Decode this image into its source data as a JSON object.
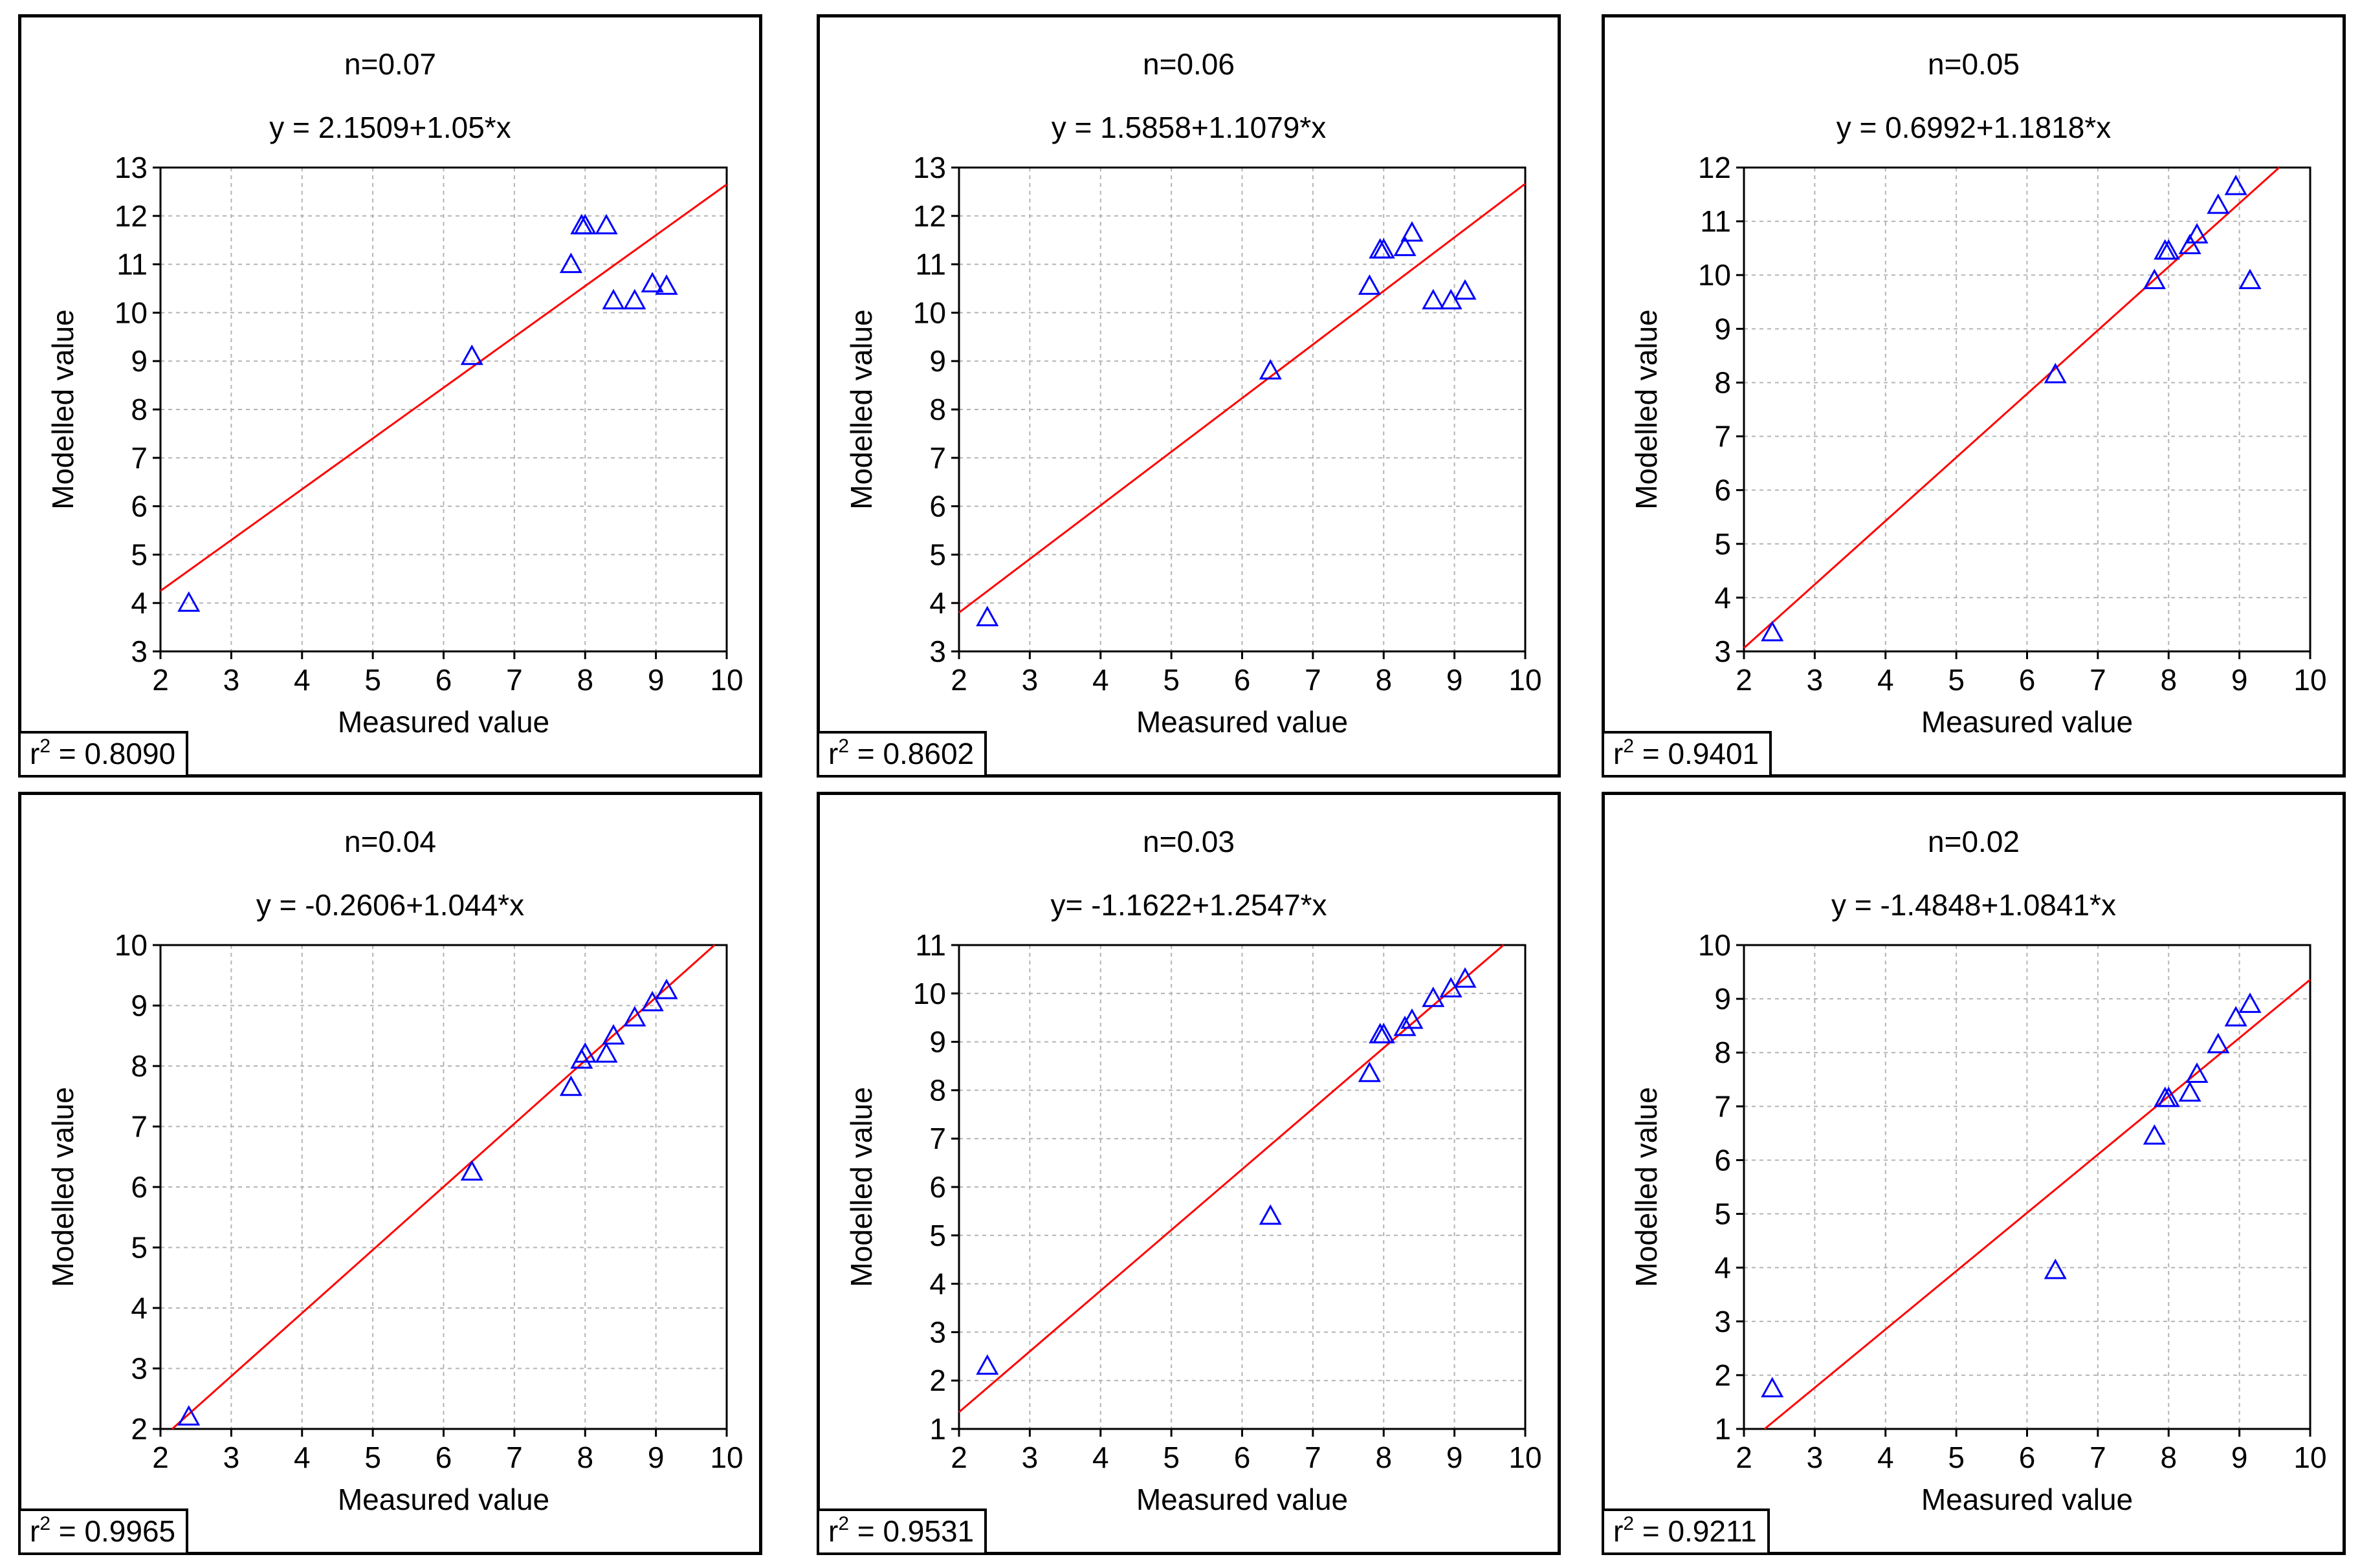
{
  "figure": {
    "measured_x": [
      2.4,
      6.4,
      7.8,
      7.95,
      8.0,
      8.3,
      8.4,
      8.7,
      8.95,
      9.15
    ],
    "colors": {
      "frame": "#000000",
      "grid": "#b4b4b4",
      "fit_line": "#ff0000",
      "marker": "#0000ff"
    }
  },
  "chart_data": [
    {
      "type": "scatter",
      "title": "n=0.07",
      "equation": "y = 2.1509+1.05*x",
      "xlabel": "Measured value",
      "ylabel": "Modelled value",
      "xlim": [
        2,
        10
      ],
      "ylim": [
        3,
        13
      ],
      "xticks": [
        "2",
        "3",
        "4",
        "5",
        "6",
        "7",
        "8",
        "9",
        "10"
      ],
      "yticks": [
        "3",
        "4",
        "5",
        "6",
        "7",
        "8",
        "9",
        "10",
        "11",
        "12",
        "13"
      ],
      "r2_label": "r",
      "r2_sup": "2",
      "r2_value": " = 0.8090",
      "fit": {
        "intercept": 2.1509,
        "slope": 1.05
      },
      "y": [
        4.0,
        9.1,
        11.0,
        11.8,
        11.8,
        11.8,
        10.25,
        10.25,
        10.6,
        10.55
      ]
    },
    {
      "type": "scatter",
      "title": "n=0.06",
      "equation": "y = 1.5858+1.1079*x",
      "xlabel": "Measured value",
      "ylabel": "Modelled value",
      "xlim": [
        2,
        10
      ],
      "ylim": [
        3,
        13
      ],
      "xticks": [
        "2",
        "3",
        "4",
        "5",
        "6",
        "7",
        "8",
        "9",
        "10"
      ],
      "yticks": [
        "3",
        "4",
        "5",
        "6",
        "7",
        "8",
        "9",
        "10",
        "11",
        "12",
        "13"
      ],
      "r2_label": "r",
      "r2_sup": "2",
      "r2_value": " = 0.8602",
      "fit": {
        "intercept": 1.5858,
        "slope": 1.1079
      },
      "y": [
        3.7,
        8.8,
        10.55,
        11.3,
        11.3,
        11.35,
        11.65,
        10.25,
        10.25,
        10.45
      ]
    },
    {
      "type": "scatter",
      "title": "n=0.05",
      "equation": "y = 0.6992+1.1818*x",
      "xlabel": "Measured value",
      "ylabel": "Modelled value",
      "xlim": [
        2,
        10
      ],
      "ylim": [
        3,
        12
      ],
      "xticks": [
        "2",
        "3",
        "4",
        "5",
        "6",
        "7",
        "8",
        "9",
        "10"
      ],
      "yticks": [
        "3",
        "4",
        "5",
        "6",
        "7",
        "8",
        "9",
        "10",
        "11",
        "12"
      ],
      "r2_label": "r",
      "r2_sup": "2",
      "r2_value": " = 0.9401",
      "fit": {
        "intercept": 0.6992,
        "slope": 1.1818
      },
      "y": [
        3.35,
        8.15,
        9.9,
        10.45,
        10.45,
        10.55,
        10.75,
        11.3,
        11.65,
        9.9
      ]
    },
    {
      "type": "scatter",
      "title": "n=0.04",
      "equation": "y = -0.2606+1.044*x",
      "xlabel": "Measured value",
      "ylabel": "Modelled value",
      "xlim": [
        2,
        10
      ],
      "ylim": [
        2,
        10
      ],
      "xticks": [
        "2",
        "3",
        "4",
        "5",
        "6",
        "7",
        "8",
        "9",
        "10"
      ],
      "yticks": [
        "2",
        "3",
        "4",
        "5",
        "6",
        "7",
        "8",
        "9",
        "10"
      ],
      "r2_label": "r",
      "r2_sup": "2",
      "r2_value": " = 0.9965",
      "fit": {
        "intercept": -0.2606,
        "slope": 1.044
      },
      "y": [
        2.2,
        6.25,
        7.65,
        8.1,
        8.2,
        8.2,
        8.5,
        8.8,
        9.05,
        9.25
      ]
    },
    {
      "type": "scatter",
      "title": "n=0.03",
      "equation": "y= -1.1622+1.2547*x",
      "xlabel": "Measured value",
      "ylabel": "Modelled value",
      "xlim": [
        2,
        10
      ],
      "ylim": [
        1,
        11
      ],
      "xticks": [
        "2",
        "3",
        "4",
        "5",
        "6",
        "7",
        "8",
        "9",
        "10"
      ],
      "yticks": [
        "1",
        "2",
        "3",
        "4",
        "5",
        "6",
        "7",
        "8",
        "9",
        "10",
        "11"
      ],
      "r2_label": "r",
      "r2_sup": "2",
      "r2_value": " = 0.9531",
      "fit": {
        "intercept": -1.1622,
        "slope": 1.2547
      },
      "y": [
        2.3,
        5.4,
        8.35,
        9.15,
        9.15,
        9.3,
        9.45,
        9.9,
        10.1,
        10.3
      ]
    },
    {
      "type": "scatter",
      "title": "n=0.02",
      "equation": "y = -1.4848+1.0841*x",
      "xlabel": "Measured value",
      "ylabel": "Modelled value",
      "xlim": [
        2,
        10
      ],
      "ylim": [
        1,
        10
      ],
      "xticks": [
        "2",
        "3",
        "4",
        "5",
        "6",
        "7",
        "8",
        "9",
        "10"
      ],
      "yticks": [
        "1",
        "2",
        "3",
        "4",
        "5",
        "6",
        "7",
        "8",
        "9",
        "10"
      ],
      "r2_label": "r",
      "r2_sup": "2",
      "r2_value": " = 0.9211",
      "fit": {
        "intercept": -1.4848,
        "slope": 1.0841
      },
      "y": [
        1.75,
        3.95,
        6.45,
        7.15,
        7.15,
        7.25,
        7.6,
        8.15,
        8.65,
        8.9
      ]
    }
  ]
}
